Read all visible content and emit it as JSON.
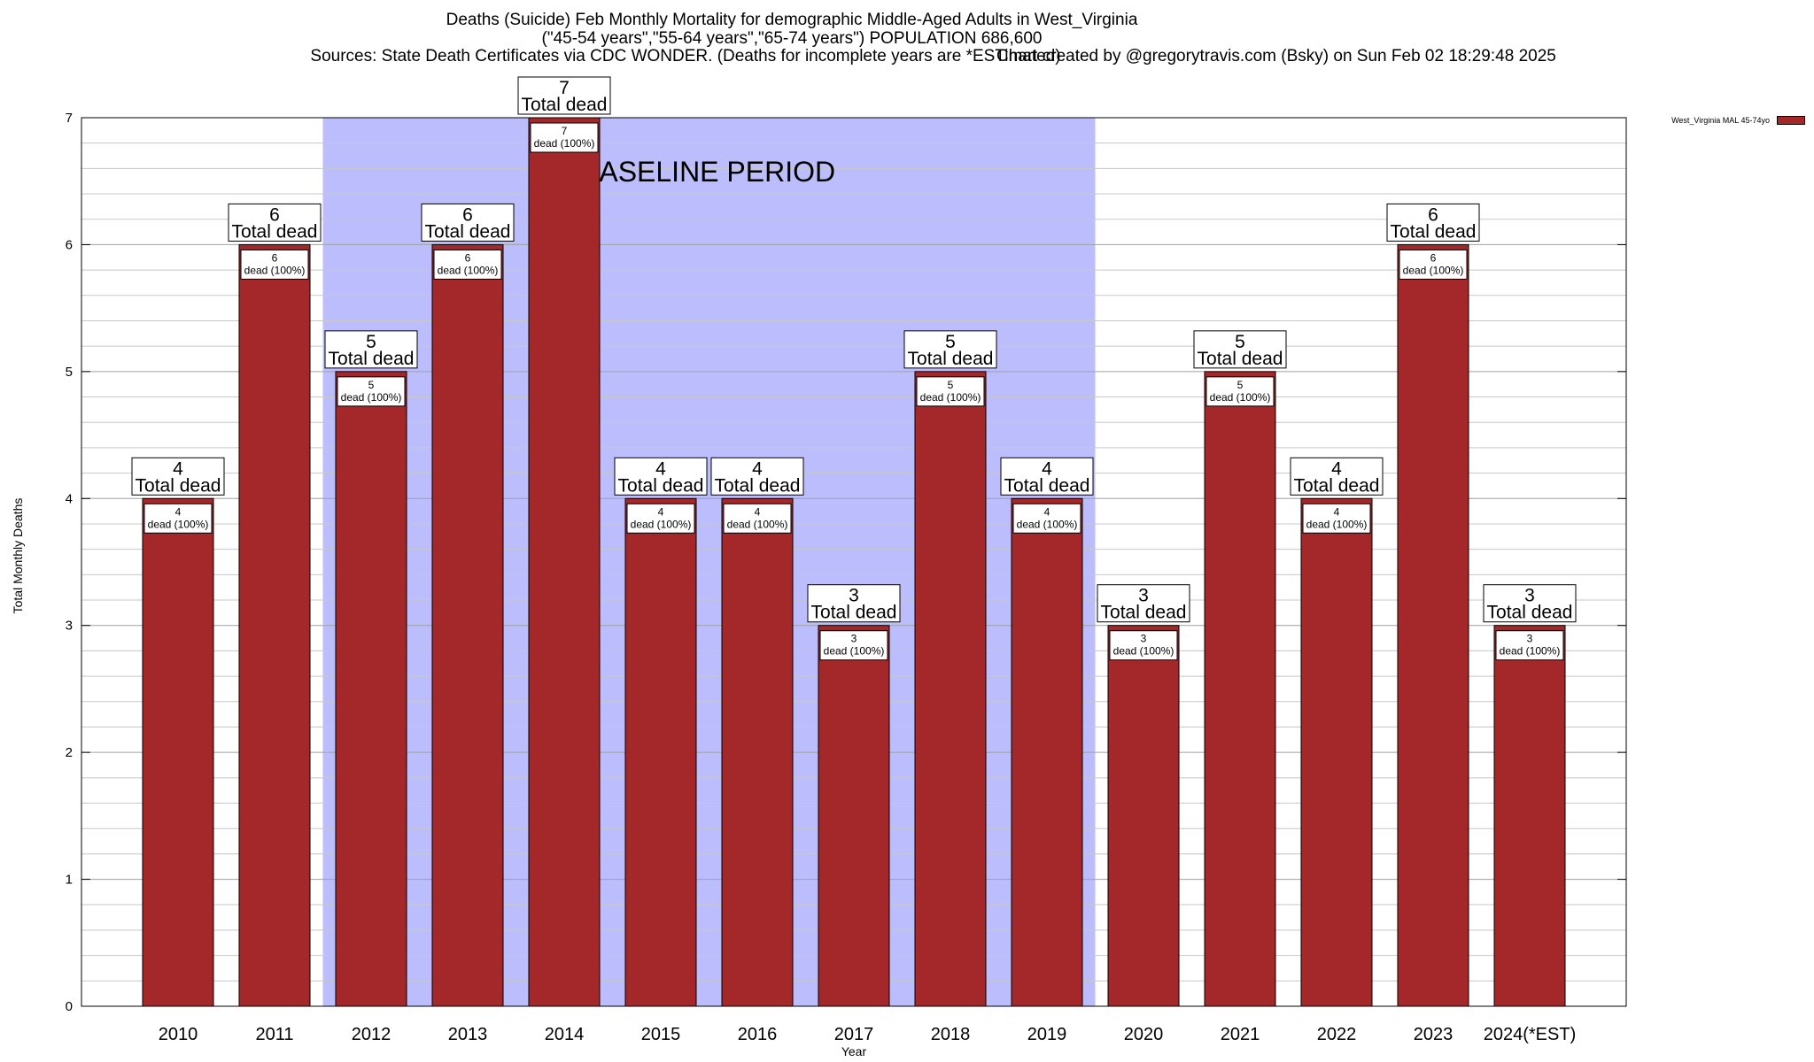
{
  "header": {
    "line1": "Deaths (Suicide) Feb Monthly Mortality for demographic Middle-Aged Adults in West_Virginia",
    "line2": "(\"45-54 years\",\"55-64 years\",\"65-74 years\") POPULATION 686,600",
    "line3": "Sources: State Death Certificates via CDC WONDER. (Deaths for incomplete years are *ESTimated)",
    "line3b": "Chart created by @gregorytravis.com (Bsky) on Sun Feb 02 18:29:48 2025"
  },
  "chart_data": {
    "type": "bar",
    "title": "Deaths (Suicide) Feb Monthly Mortality for demographic Middle-Aged Adults in West_Virginia",
    "xlabel": "Year",
    "ylabel": "Total Monthly Deaths",
    "ylim": [
      0,
      7
    ],
    "yticks": [
      0,
      1,
      2,
      3,
      4,
      5,
      6,
      7
    ],
    "grid": true,
    "categories": [
      "2010",
      "2011",
      "2012",
      "2013",
      "2014",
      "2015",
      "2016",
      "2017",
      "2018",
      "2019",
      "2020",
      "2021",
      "2022",
      "2023",
      "2024(*EST)"
    ],
    "series": [
      {
        "name": "West_Virginia MAL 45-74yo",
        "values": [
          4,
          6,
          5,
          6,
          7,
          4,
          4,
          3,
          5,
          4,
          3,
          5,
          4,
          6,
          3
        ]
      }
    ],
    "bar_color": "#a4282a",
    "total_label_text": "Total dead",
    "inner_label_text": "dead (100%)",
    "baseline": {
      "label": "BASELINE PERIOD",
      "from": "2012",
      "to": "2019",
      "color": "#bcbdfc"
    },
    "legend_position": "top-right"
  }
}
